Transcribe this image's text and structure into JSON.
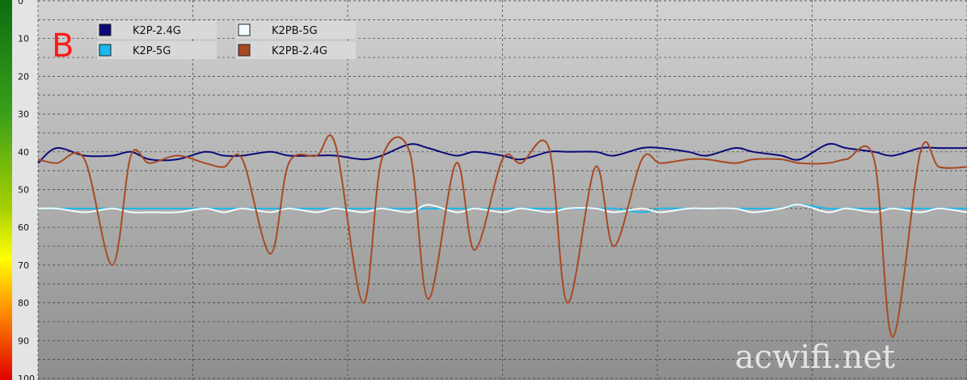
{
  "panel_label": "B",
  "watermark": "acwifi.net",
  "colors": {
    "panel_label": "#ff1a1a",
    "watermark": "#f2f2f2",
    "grid": "#3a3a3a"
  },
  "chart_data": {
    "type": "line",
    "title": "",
    "xlabel": "",
    "ylabel": "",
    "ylim": [
      0,
      100
    ],
    "y_inverted": true,
    "grid": true,
    "legend_placement": "top-left",
    "yticks": [
      "0",
      "10",
      "20",
      "30",
      "40",
      "50",
      "60",
      "70",
      "80",
      "90",
      "100"
    ],
    "x": [
      0,
      2,
      5,
      8,
      10,
      12,
      15,
      18,
      20,
      22,
      25,
      27,
      30,
      32,
      35,
      37,
      40,
      42,
      45,
      47,
      50,
      52,
      55,
      57,
      60,
      62,
      65,
      67,
      70,
      72,
      75,
      77,
      80,
      82,
      85,
      87,
      90,
      92,
      95,
      97,
      100
    ],
    "series": [
      {
        "name": "K2P-2.4G",
        "color": "#0a0a7a",
        "values": [
          43,
          39,
          41,
          41,
          40,
          42,
          42,
          40,
          41,
          41,
          40,
          41,
          41,
          41,
          42,
          41,
          38,
          39,
          41,
          40,
          41,
          42,
          40,
          40,
          40,
          41,
          39,
          39,
          40,
          41,
          39,
          40,
          41,
          42,
          38,
          39,
          40,
          41,
          39,
          39,
          39
        ]
      },
      {
        "name": "K2P-5G",
        "color": "#1ab8ee",
        "values": [
          55,
          55,
          55,
          55,
          55,
          55,
          55,
          55,
          55,
          55,
          55,
          55,
          55,
          55,
          55,
          55,
          55,
          55,
          55,
          55,
          55,
          55,
          55,
          55,
          55,
          55,
          56,
          55,
          55,
          55,
          55,
          55,
          55,
          54,
          55,
          55,
          55,
          55,
          55,
          55,
          55
        ]
      },
      {
        "name": "K2PB-5G",
        "color": "#f2fbff",
        "values": [
          55,
          55,
          56,
          55,
          56,
          56,
          56,
          55,
          56,
          55,
          56,
          55,
          56,
          55,
          56,
          55,
          56,
          54,
          56,
          55,
          56,
          55,
          56,
          55,
          55,
          56,
          55,
          56,
          55,
          55,
          55,
          56,
          55,
          54,
          56,
          55,
          56,
          55,
          56,
          55,
          56
        ]
      },
      {
        "name": "K2PB-2.4G",
        "color": "#a84a22",
        "values": [
          42,
          43,
          42,
          70,
          41,
          43,
          41,
          43,
          44,
          42,
          67,
          43,
          41,
          38,
          80,
          42,
          40,
          79,
          43,
          66,
          42,
          43,
          39,
          80,
          44,
          65,
          42,
          43,
          42,
          42,
          43,
          42,
          42,
          43,
          43,
          42,
          42,
          89,
          40,
          44,
          44
        ]
      }
    ]
  }
}
